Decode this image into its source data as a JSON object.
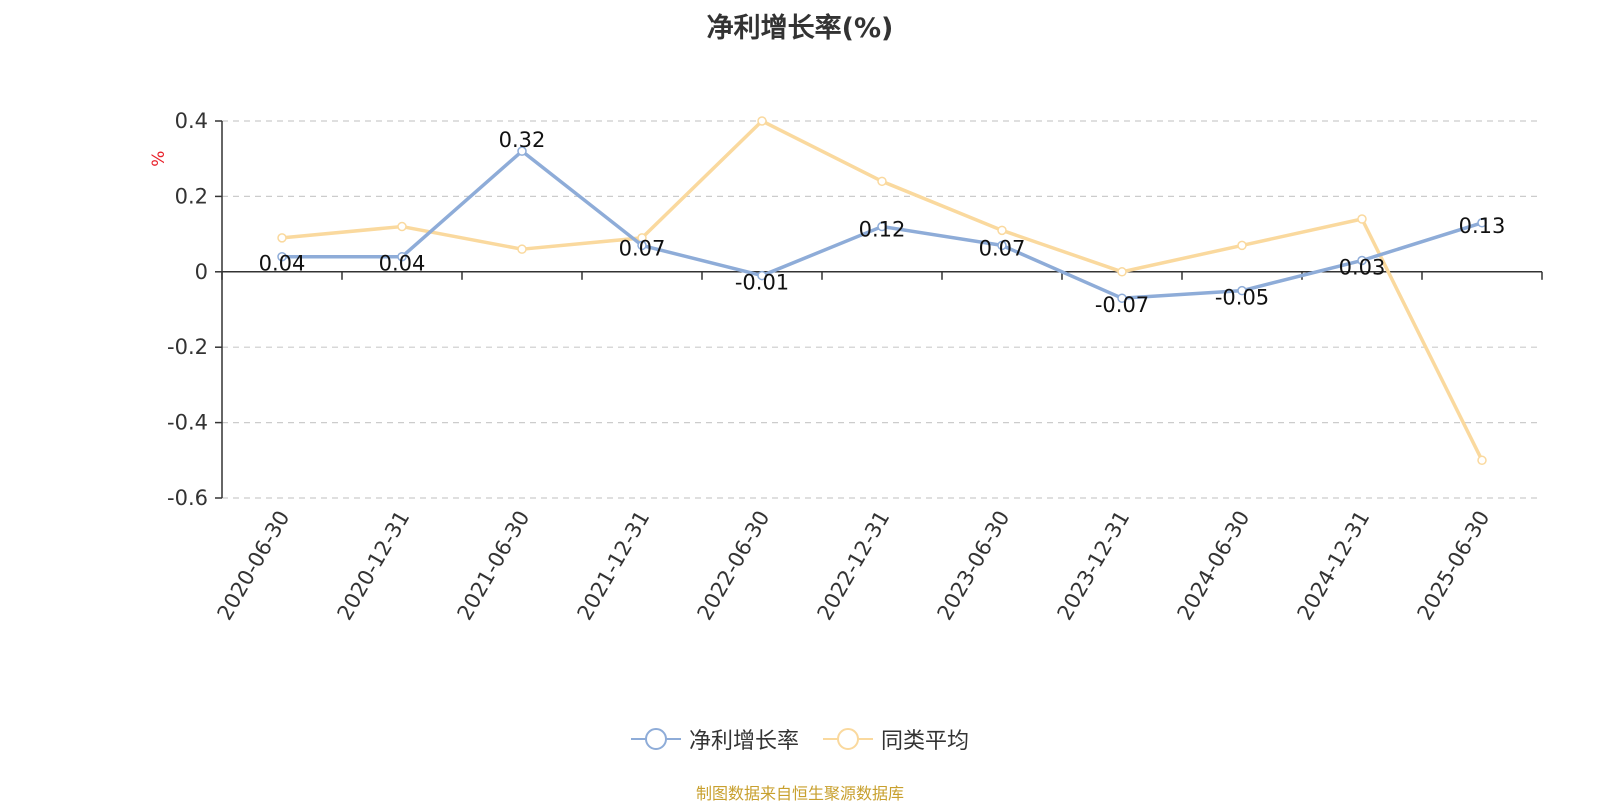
{
  "chart_data": {
    "type": "line",
    "title": "净利增长率(%)",
    "ylabel": "%",
    "xlabel": "",
    "categories": [
      "2020-06-30",
      "2020-12-31",
      "2021-06-30",
      "2021-12-31",
      "2022-06-30",
      "2022-12-31",
      "2023-06-30",
      "2023-12-31",
      "2024-06-30",
      "2024-12-31",
      "2025-06-30"
    ],
    "ylim": [
      -0.6,
      0.4
    ],
    "yticks": [
      0.4,
      0.2,
      0,
      -0.2,
      -0.4,
      -0.6
    ],
    "ytick_labels": [
      "0.4",
      "0.2",
      "0",
      "-0.2",
      "-0.4",
      "-0.6"
    ],
    "grid": true,
    "legend_position": "bottom",
    "series": [
      {
        "name": "净利增长率",
        "color": "#8eacd8",
        "values": [
          0.04,
          0.04,
          0.32,
          0.07,
          -0.01,
          0.12,
          0.07,
          -0.07,
          -0.05,
          0.03,
          0.13
        ],
        "data_labels": [
          "0.04",
          "0.04",
          "0.32",
          "0.07",
          "-0.01",
          "0.12",
          "0.07",
          "-0.07",
          "-0.05",
          "0.03",
          "0.13"
        ]
      },
      {
        "name": "同类平均",
        "color": "#fad99e",
        "values": [
          0.09,
          0.12,
          0.06,
          0.09,
          0.4,
          0.24,
          0.11,
          0.0,
          0.07,
          0.14,
          -0.5
        ]
      }
    ],
    "source": "制图数据来自恒生聚源数据库"
  }
}
